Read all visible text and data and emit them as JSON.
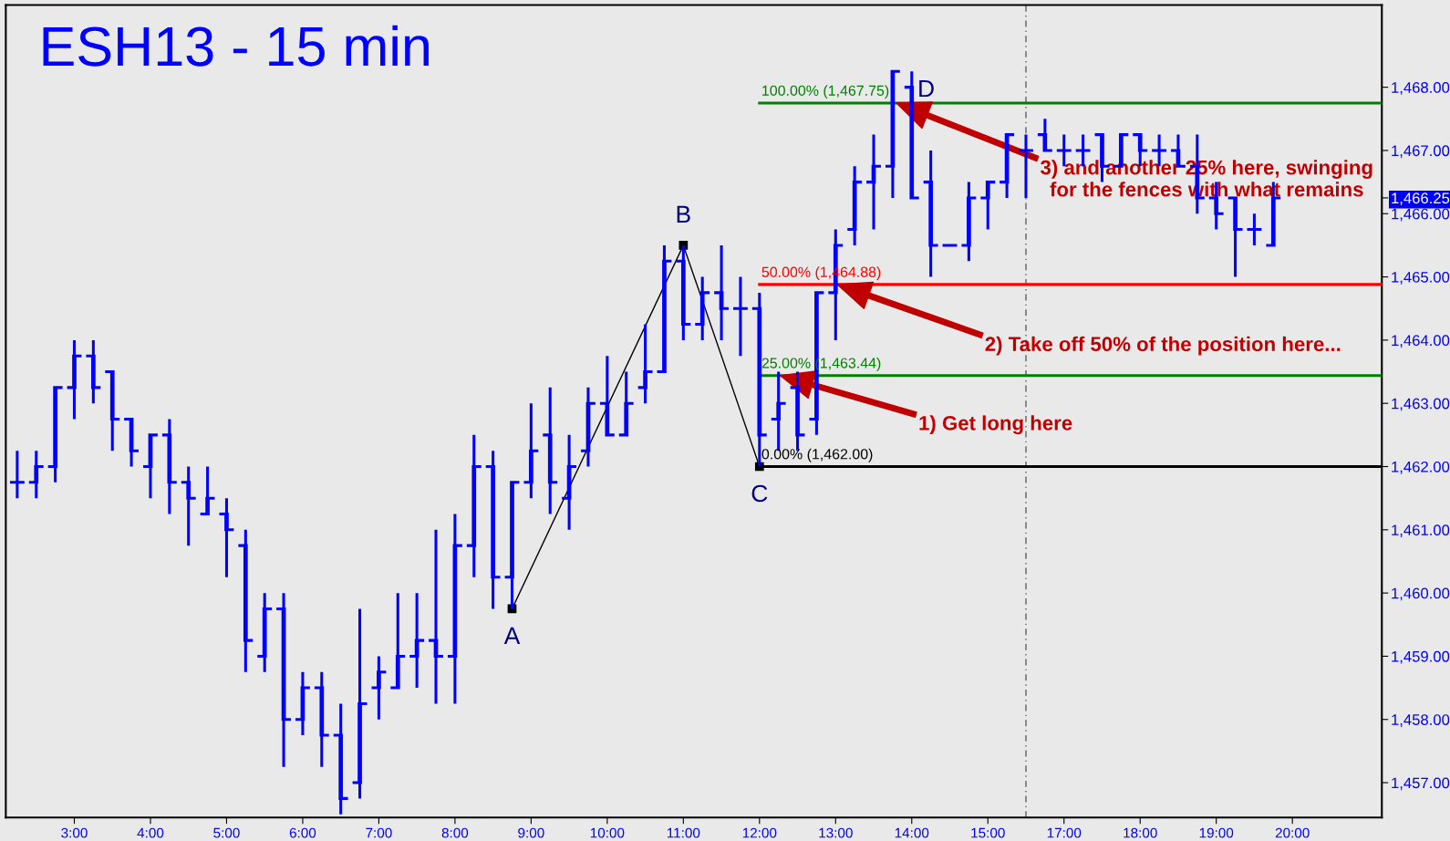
{
  "chart_data": {
    "type": "candlestick",
    "title": "ESH13 - 15 min",
    "categories": [
      null,
      null,
      null,
      "3:00",
      null,
      null,
      null,
      "4:00",
      null,
      null,
      null,
      "5:00",
      null,
      null,
      null,
      "6:00",
      null,
      null,
      null,
      "7:00",
      null,
      null,
      null,
      "8:00",
      null,
      null,
      null,
      "9:00",
      null,
      null,
      null,
      "10:00",
      null,
      null,
      null,
      "11:00",
      null,
      null,
      null,
      "12:00",
      null,
      null,
      null,
      "13:00",
      null,
      null,
      null,
      "14:00",
      null,
      null,
      null,
      "15:00",
      null,
      null,
      null,
      "17:00",
      null,
      null,
      null,
      "18:00",
      null,
      null,
      null,
      "19:00",
      null,
      null,
      null,
      "20:00",
      null,
      null,
      null,
      null
    ],
    "color": "#0000ff",
    "ohlc": [
      [
        1461.75,
        1462.25,
        1461.5,
        1461.75
      ],
      [
        1461.75,
        1462.25,
        1461.5,
        1462.0
      ],
      [
        1462.0,
        1463.25,
        1461.75,
        1463.25
      ],
      [
        1463.25,
        1464.0,
        1462.75,
        1463.75
      ],
      [
        1463.75,
        1464.0,
        1463.0,
        1463.25
      ],
      [
        1463.5,
        1463.5,
        1462.25,
        1462.75
      ],
      [
        1462.75,
        1462.75,
        1462.0,
        1462.25
      ],
      [
        1462.0,
        1462.5,
        1461.5,
        1462.5
      ],
      [
        1462.5,
        1462.75,
        1461.25,
        1461.75
      ],
      [
        1461.75,
        1462.0,
        1460.75,
        1461.5
      ],
      [
        1461.25,
        1462.0,
        1461.25,
        1461.5
      ],
      [
        1461.25,
        1461.5,
        1460.25,
        1461.0
      ],
      [
        1460.75,
        1461.0,
        1458.75,
        1459.25
      ],
      [
        1459.0,
        1460.0,
        1458.75,
        1459.75
      ],
      [
        1459.75,
        1460.0,
        1457.25,
        1458.0
      ],
      [
        1458.0,
        1458.75,
        1457.75,
        1458.5
      ],
      [
        1458.5,
        1458.75,
        1457.25,
        1457.75
      ],
      [
        1457.75,
        1458.25,
        1456.5,
        1456.75
      ],
      [
        1457.0,
        1459.75,
        1456.75,
        1458.25
      ],
      [
        1458.5,
        1459.0,
        1458.0,
        1458.75
      ],
      [
        1458.5,
        1460.0,
        1458.5,
        1459.0
      ],
      [
        1459.0,
        1460.0,
        1458.5,
        1459.25
      ],
      [
        1459.25,
        1461.0,
        1458.25,
        1459.0
      ],
      [
        1459.0,
        1461.25,
        1458.25,
        1460.75
      ],
      [
        1460.75,
        1462.5,
        1460.25,
        1462.0
      ],
      [
        1462.0,
        1462.25,
        1459.75,
        1460.25
      ],
      [
        1460.25,
        1461.75,
        1459.75,
        1461.75
      ],
      [
        1461.75,
        1463.0,
        1461.5,
        1462.25
      ],
      [
        1462.5,
        1463.25,
        1461.25,
        1461.75
      ],
      [
        1461.5,
        1462.5,
        1461.0,
        1462.0
      ],
      [
        1462.25,
        1463.25,
        1462.0,
        1463.0
      ],
      [
        1463.0,
        1463.75,
        1462.5,
        1462.5
      ],
      [
        1462.5,
        1463.5,
        1462.5,
        1463.0
      ],
      [
        1463.25,
        1464.25,
        1463.0,
        1463.5
      ],
      [
        1463.5,
        1465.5,
        1463.5,
        1465.25
      ],
      [
        1465.25,
        1465.5,
        1464.0,
        1464.25
      ],
      [
        1464.25,
        1465.0,
        1464.0,
        1464.75
      ],
      [
        1464.75,
        1465.5,
        1464.0,
        1464.5
      ],
      [
        1464.5,
        1465.0,
        1463.75,
        1464.5
      ],
      [
        1464.5,
        1464.75,
        1462.0,
        1462.5
      ],
      [
        1462.75,
        1463.5,
        1462.25,
        1463.0
      ],
      [
        1463.25,
        1463.5,
        1462.25,
        1462.5
      ],
      [
        1462.75,
        1464.75,
        1462.5,
        1464.75
      ],
      [
        1464.75,
        1465.75,
        1464.0,
        1465.5
      ],
      [
        1465.75,
        1466.75,
        1465.5,
        1466.5
      ],
      [
        1466.5,
        1467.25,
        1465.75,
        1466.75
      ],
      [
        1466.75,
        1468.25,
        1466.25,
        1468.25
      ],
      [
        1468.0,
        1468.25,
        1466.25,
        1466.25
      ],
      [
        1466.5,
        1467.0,
        1465.0,
        1465.5
      ],
      [
        1465.5,
        1465.5,
        1465.5,
        1465.5
      ],
      [
        1465.5,
        1466.5,
        1465.25,
        1466.25
      ],
      [
        1466.25,
        1466.5,
        1465.75,
        1466.5
      ],
      [
        1466.5,
        1467.25,
        1466.25,
        1467.25
      ],
      [
        1467.0,
        1467.25,
        1466.25,
        1467.0
      ],
      [
        1467.25,
        1467.5,
        1467.0,
        1467.0
      ],
      [
        1467.0,
        1467.25,
        1466.75,
        1467.0
      ],
      [
        1467.0,
        1467.25,
        1466.75,
        1467.0
      ],
      [
        1467.25,
        1467.25,
        1466.5,
        1466.75
      ],
      [
        1466.75,
        1467.25,
        1466.75,
        1467.25
      ],
      [
        1467.25,
        1467.25,
        1466.75,
        1467.0
      ],
      [
        1467.0,
        1467.25,
        1466.75,
        1467.0
      ],
      [
        1467.0,
        1467.25,
        1466.75,
        1466.75
      ],
      [
        1466.75,
        1467.25,
        1466.0,
        1466.25
      ],
      [
        1466.25,
        1466.5,
        1465.75,
        1466.0
      ],
      [
        1466.25,
        1466.25,
        1465.0,
        1465.75
      ],
      [
        1465.75,
        1466.0,
        1465.5,
        1465.75
      ],
      [
        1465.5,
        1466.5,
        1465.5,
        1466.25
      ],
      null,
      null,
      null,
      null,
      null
    ],
    "series": [
      {
        "type": "line",
        "color": "#000000",
        "marker": "square",
        "values": [
          null,
          null,
          null,
          null,
          null,
          null,
          null,
          null,
          null,
          null,
          null,
          null,
          null,
          null,
          null,
          null,
          null,
          null,
          null,
          null,
          null,
          null,
          null,
          null,
          null,
          null,
          1459.75,
          null,
          null,
          null,
          null,
          null,
          null,
          null,
          null,
          1465.5,
          null,
          null,
          null,
          1462.0,
          null,
          null,
          null,
          null,
          null,
          null,
          null,
          null,
          null,
          null,
          null,
          null,
          null,
          null,
          null,
          null,
          null,
          null,
          null,
          null,
          null,
          null,
          null,
          null,
          null,
          null,
          null,
          null,
          null,
          null,
          null,
          null
        ],
        "value_labels": [
          null,
          null,
          null,
          null,
          null,
          null,
          null,
          null,
          null,
          null,
          null,
          null,
          null,
          null,
          null,
          null,
          null,
          null,
          null,
          null,
          null,
          null,
          null,
          null,
          null,
          null,
          "A",
          null,
          null,
          null,
          null,
          null,
          null,
          null,
          null,
          "B",
          null,
          null,
          null,
          "C",
          null,
          null,
          null,
          null,
          null,
          null,
          null,
          null,
          null,
          null,
          null,
          null,
          null,
          null,
          null,
          null,
          null,
          null,
          null,
          null,
          null,
          null,
          null,
          null,
          null,
          null,
          null,
          null,
          null,
          null,
          null,
          null
        ]
      }
    ],
    "ylim": [
      1456.45,
      1469.3
    ],
    "yticks": [
      {
        "value": 1457,
        "label": "1,457.00"
      },
      {
        "value": 1458,
        "label": "1,458.00"
      },
      {
        "value": 1459,
        "label": "1,459.00"
      },
      {
        "value": 1460,
        "label": "1,460.00"
      },
      {
        "value": 1461,
        "label": "1,461.00"
      },
      {
        "value": 1462,
        "label": "1,462.00"
      },
      {
        "value": 1463,
        "label": "1,463.00"
      },
      {
        "value": 1464,
        "label": "1,464.00"
      },
      {
        "value": 1465,
        "label": "1,465.00"
      },
      {
        "value": 1466,
        "label": "1,466.00"
      },
      {
        "value": 1466.25,
        "label": "1,466.25"
      },
      {
        "value": 1467,
        "label": "1,467.00"
      },
      {
        "value": 1468,
        "label": "1,468.00"
      }
    ],
    "ref_lines": [
      {
        "axis": "y",
        "value": 1467.75,
        "label": "100.00% (1,467.75)",
        "color": "#008000"
      },
      {
        "axis": "y",
        "value": 1464.88,
        "label": "50.00% (1,464.88)",
        "color": "#ff0000"
      },
      {
        "axis": "y",
        "value": 1463.44,
        "label": "25.00% (1,463.44)",
        "color": "#008000"
      },
      {
        "axis": "y",
        "value": 1462.0,
        "label": "0.00% (1,462.00)",
        "color": "#000000"
      }
    ],
    "annotations": [
      {
        "text": "1) Get long here",
        "y": 1463.44
      },
      {
        "text": "2) Take off 50% of the position here...",
        "y": 1464.88
      },
      {
        "text": "3) and another 25% here, swinging\nfor the fences with what remains",
        "y": 1467.75
      },
      {
        "text": "D",
        "x": "14:00",
        "y": 1467.75
      }
    ]
  }
}
